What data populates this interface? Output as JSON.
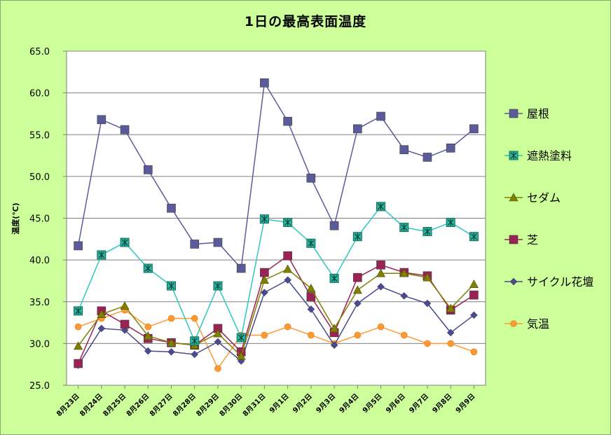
{
  "chart_data": {
    "type": "line",
    "title": "1日の最高表面温度",
    "ylabel": "温度(℃)",
    "xlabel": "",
    "ylim": [
      25,
      65
    ],
    "ytick_step": 5,
    "grid": "horizontal",
    "legend_position": "right",
    "categories": [
      "8月23日",
      "8月24日",
      "8月25日",
      "8月26日",
      "8月27日",
      "8月28日",
      "8月29日",
      "8月30日",
      "8月31日",
      "9月1日",
      "9月2日",
      "9月3日",
      "9月4日",
      "9月5日",
      "9月6日",
      "9月7日",
      "9月8日",
      "9月9日"
    ],
    "series": [
      {
        "name": "屋根",
        "color": "#5b5b9c",
        "marker": "square",
        "values": [
          41.7,
          56.8,
          55.6,
          50.8,
          46.2,
          41.9,
          42.1,
          39.0,
          61.2,
          56.6,
          49.8,
          44.1,
          55.7,
          57.2,
          53.2,
          52.3,
          53.4,
          55.7
        ]
      },
      {
        "name": "遮熱塗料",
        "color": "#2ec7c0",
        "marker": "star-square",
        "values": [
          33.9,
          40.6,
          42.1,
          39.0,
          36.9,
          30.3,
          36.9,
          30.7,
          44.9,
          44.5,
          42.0,
          37.8,
          42.8,
          46.4,
          43.9,
          43.4,
          44.5,
          42.8
        ]
      },
      {
        "name": "セダム",
        "color": "#808000",
        "marker": "triangle",
        "values": [
          29.7,
          33.5,
          34.5,
          30.9,
          30.1,
          29.8,
          31.2,
          28.5,
          37.6,
          38.9,
          36.6,
          31.8,
          36.4,
          38.4,
          38.4,
          37.9,
          34.2,
          37.1
        ]
      },
      {
        "name": "芝",
        "color": "#9a2255",
        "marker": "square",
        "values": [
          27.6,
          33.9,
          32.3,
          30.6,
          30.1,
          29.8,
          31.8,
          29.0,
          38.5,
          40.5,
          35.6,
          31.3,
          37.9,
          39.4,
          38.5,
          38.1,
          34.0,
          35.8
        ]
      },
      {
        "name": "サイクル花壇",
        "color": "#4a4a8c",
        "marker": "diamond",
        "values": [
          27.4,
          31.8,
          31.6,
          29.1,
          29.0,
          28.7,
          30.2,
          27.9,
          36.1,
          37.6,
          34.1,
          29.8,
          34.8,
          36.8,
          35.7,
          34.8,
          31.3,
          33.4
        ]
      },
      {
        "name": "気温",
        "color": "#ff9933",
        "marker": "circle",
        "values": [
          32.0,
          33.0,
          34.0,
          32.0,
          33.0,
          33.0,
          27.0,
          31.0,
          31.0,
          32.0,
          31.0,
          30.0,
          31.0,
          32.0,
          31.0,
          30.0,
          30.0,
          29.0
        ]
      }
    ]
  }
}
